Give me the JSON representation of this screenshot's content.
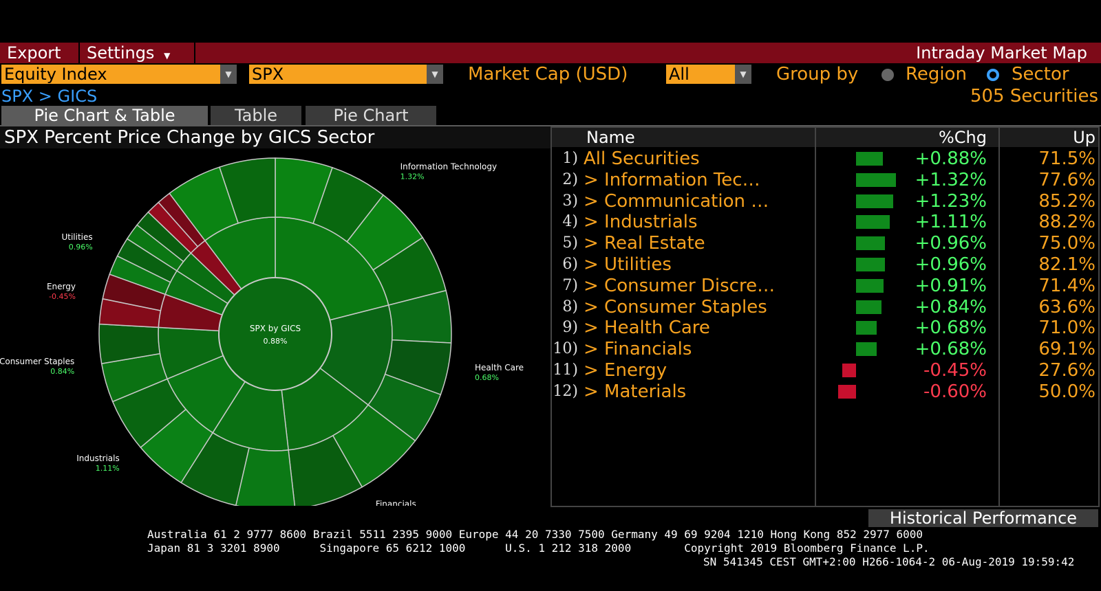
{
  "menu": {
    "export": "Export",
    "settings": "Settings",
    "app_title": "Intraday Market Map"
  },
  "controls": {
    "index_type": "Equity Index",
    "ticker": "SPX",
    "market_cap_label": "Market Cap (USD)",
    "market_cap_value": "All",
    "group_by_label": "Group by",
    "region_label": "Region",
    "sector_label": "Sector",
    "selected_group": "Sector"
  },
  "breadcrumb": "SPX > GICS",
  "security_count": "505 Securities",
  "tabs": [
    {
      "label": "Pie Chart & Table",
      "active": true
    },
    {
      "label": "Table",
      "active": false
    },
    {
      "label": "Pie Chart",
      "active": false
    }
  ],
  "chart_title": "SPX Percent Price Change by GICS Sector",
  "chart_data": {
    "type": "pie",
    "center_label": "SPX by GICS",
    "center_value": "0.88%",
    "slices": [
      {
        "name": "Information Technology",
        "change": 1.32,
        "label": "1.32%",
        "color": "#0a7a12",
        "share": 0.205
      },
      {
        "name": "Health Care",
        "change": 0.68,
        "label": "0.68%",
        "color": "#0a6515",
        "share": 0.14
      },
      {
        "name": "Financials",
        "change": 0.68,
        "label": "0.68%",
        "color": "#0a6d12",
        "share": 0.125
      },
      {
        "name": "Consumer Discretionary",
        "change": 0.91,
        "label": "0.91%",
        "color": "#0a7013",
        "share": 0.105
      },
      {
        "name": "Industrials",
        "change": 1.11,
        "label": "1.11%",
        "color": "#0a7714",
        "share": 0.095
      },
      {
        "name": "Consumer Staples",
        "change": 0.84,
        "label": "0.84%",
        "color": "#0a6a12",
        "share": 0.07
      },
      {
        "name": "Energy",
        "change": -0.45,
        "label": "-0.45%",
        "color": "#7a0a18",
        "share": 0.045
      },
      {
        "name": "Utilities",
        "change": 0.96,
        "label": "0.96%",
        "color": "#0a7214",
        "share": 0.035
      },
      {
        "name": "Real Estate",
        "change": 0.96,
        "label": "",
        "color": "#0a6e12",
        "share": 0.03
      },
      {
        "name": "Materials",
        "change": -0.6,
        "label": "",
        "color": "#8a0a1c",
        "share": 0.025
      },
      {
        "name": "Communication Services",
        "change": 1.23,
        "label": "",
        "color": "#0a7a12",
        "share": 0.1
      }
    ]
  },
  "table": {
    "headers": {
      "name": "Name",
      "chg": "%Chg",
      "up": "Up"
    },
    "rows": [
      {
        "num": "1)",
        "name": "All Securities",
        "chg": "+0.88%",
        "up": "71.5%",
        "value": 0.88
      },
      {
        "num": "2)",
        "name": "> Information Tec…",
        "chg": "+1.32%",
        "up": "77.6%",
        "value": 1.32
      },
      {
        "num": "3)",
        "name": "> Communication …",
        "chg": "+1.23%",
        "up": "85.2%",
        "value": 1.23
      },
      {
        "num": "4)",
        "name": "> Industrials",
        "chg": "+1.11%",
        "up": "88.2%",
        "value": 1.11
      },
      {
        "num": "5)",
        "name": "> Real Estate",
        "chg": "+0.96%",
        "up": "75.0%",
        "value": 0.96
      },
      {
        "num": "6)",
        "name": "> Utilities",
        "chg": "+0.96%",
        "up": "82.1%",
        "value": 0.96
      },
      {
        "num": "7)",
        "name": "> Consumer Discre…",
        "chg": "+0.91%",
        "up": "71.4%",
        "value": 0.91
      },
      {
        "num": "8)",
        "name": "> Consumer Staples",
        "chg": "+0.84%",
        "up": "63.6%",
        "value": 0.84
      },
      {
        "num": "9)",
        "name": "> Health Care",
        "chg": "+0.68%",
        "up": "71.0%",
        "value": 0.68
      },
      {
        "num": "10)",
        "name": "> Financials",
        "chg": "+0.68%",
        "up": "69.1%",
        "value": 0.68
      },
      {
        "num": "11)",
        "name": "> Energy",
        "chg": "-0.45%",
        "up": "27.6%",
        "value": -0.45
      },
      {
        "num": "12)",
        "name": "> Materials",
        "chg": "-0.60%",
        "up": "50.0%",
        "value": -0.6
      }
    ]
  },
  "historical_button": "Historical Performance",
  "footer": {
    "line1": "Australia 61 2 9777 8600 Brazil 5511 2395 9000 Europe 44 20 7330 7500 Germany 49 69 9204 1210 Hong Kong 852 2977 6000",
    "line2": "Japan 81 3 3201 8900      Singapore 65 6212 1000      U.S. 1 212 318 2000        Copyright 2019 Bloomberg Finance L.P.",
    "line3": "SN 541345 CEST GMT+2:00 H266-1064-2 06-Aug-2019 19:59:42"
  },
  "colors": {
    "amber": "#f7a21f",
    "positive": "#4cff6a",
    "negative": "#ff3b4e",
    "bar_pos": "#0f8a1c",
    "bar_neg": "#c8102e"
  }
}
